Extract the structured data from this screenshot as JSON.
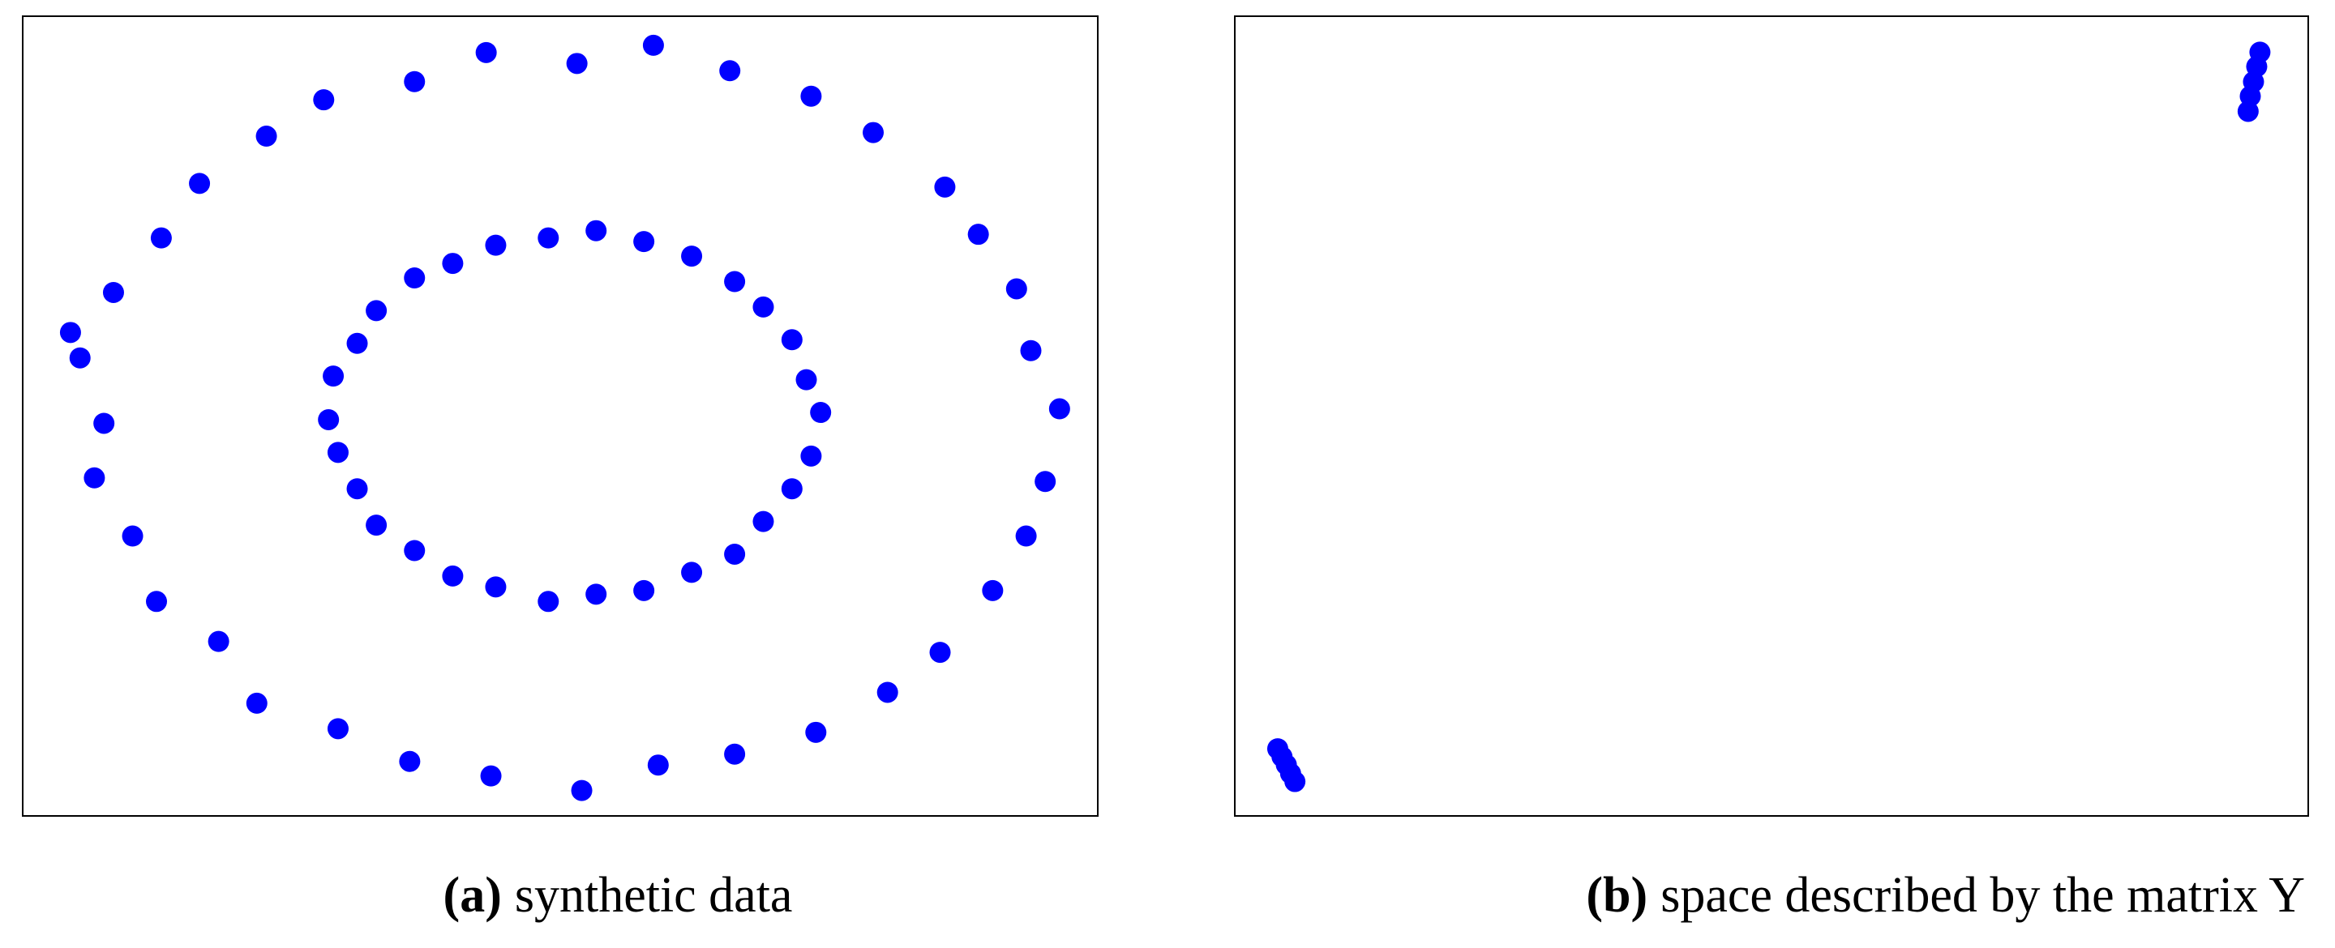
{
  "chart_data": [
    {
      "type": "scatter",
      "label": "(a)",
      "caption": "synthetic data",
      "color": "#0000ff",
      "xlim": [
        -1.15,
        1.1
      ],
      "ylim": [
        -1.1,
        1.1
      ],
      "x": [
        1.02,
        0.96,
        0.93,
        0.85,
        0.78,
        0.63,
        0.5,
        0.33,
        0.17,
        0.01,
        -0.18,
        -0.33,
        -0.52,
        -0.64,
        -0.78,
        -0.86,
        -0.96,
        -1.03,
        -0.98,
        -1.0,
        -0.92,
        -0.87,
        -0.74,
        -0.66,
        -0.49,
        -0.34,
        -0.17,
        0.02,
        0.18,
        0.34,
        0.51,
        0.66,
        0.77,
        0.88,
        0.95,
        0.99,
        -1.05,
        0.52,
        0.49,
        0.46,
        0.4,
        0.34,
        0.25,
        0.15,
        0.05,
        -0.05,
        -0.16,
        -0.25,
        -0.33,
        -0.41,
        -0.45,
        -0.5,
        -0.51,
        -0.49,
        -0.45,
        -0.41,
        -0.33,
        -0.25,
        -0.16,
        -0.05,
        0.05,
        0.15,
        0.25,
        0.34,
        0.4,
        0.46,
        0.5
      ],
      "y": [
        0.02,
        0.18,
        0.35,
        0.5,
        0.63,
        0.78,
        0.88,
        0.95,
        1.02,
        0.97,
        1.0,
        0.92,
        0.87,
        0.77,
        0.64,
        0.49,
        0.34,
        0.16,
        -0.02,
        -0.17,
        -0.33,
        -0.51,
        -0.62,
        -0.79,
        -0.86,
        -0.95,
        -0.99,
        -1.03,
        -0.96,
        -0.93,
        -0.87,
        -0.76,
        -0.65,
        -0.48,
        -0.33,
        -0.18,
        0.23,
        0.01,
        0.1,
        0.21,
        0.3,
        0.37,
        0.44,
        0.48,
        0.51,
        0.49,
        0.47,
        0.42,
        0.38,
        0.29,
        0.2,
        0.11,
        -0.01,
        -0.1,
        -0.2,
        -0.3,
        -0.37,
        -0.44,
        -0.47,
        -0.51,
        -0.49,
        -0.48,
        -0.43,
        -0.38,
        -0.29,
        -0.2,
        -0.11
      ]
    },
    {
      "type": "scatter",
      "label": "(b)",
      "caption": "space described by the matrix Y",
      "color": "#0000ff",
      "xlim": [
        0,
        1
      ],
      "ylim": [
        0,
        1
      ],
      "x": [
        0.04,
        0.044,
        0.048,
        0.052,
        0.056,
        0.944,
        0.946,
        0.949,
        0.952,
        0.955
      ],
      "y": [
        0.084,
        0.074,
        0.064,
        0.053,
        0.043,
        0.881,
        0.9,
        0.918,
        0.937,
        0.955
      ]
    }
  ]
}
